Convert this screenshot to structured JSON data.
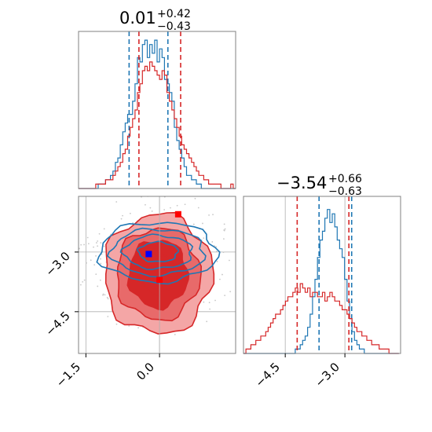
{
  "colors": {
    "blue": "#1f77b4",
    "red": "#d62728",
    "red_fill_light": "#f4a6a6",
    "red_fill_mid": "#e86a6a",
    "red_fill_dark": "#d62728",
    "blue_marker": "#0000ff",
    "red_marker": "#ff0000",
    "grid": "#b0b0b0"
  },
  "chart_data": [
    {
      "type": "histogram",
      "panel": "top-left",
      "title": {
        "median": "0.01",
        "plus": "+0.42",
        "minus": "−0.43"
      },
      "xlim": [
        -1.65,
        1.55
      ],
      "ylim": [
        0,
        36
      ],
      "bin_edges_start": -1.65,
      "bin_width": 0.05,
      "series": [
        {
          "name": "",
          "color": "#1f77b4",
          "counts": [
            0,
            0,
            0,
            0,
            0,
            0,
            0,
            0,
            1,
            1,
            1,
            2,
            2,
            3,
            4,
            6,
            7,
            10,
            13,
            15,
            17,
            17,
            20,
            24,
            30,
            29,
            33,
            34,
            30,
            33,
            31,
            34,
            29,
            32,
            30,
            25,
            24,
            22,
            20,
            14,
            11,
            9,
            7,
            5,
            3,
            3,
            2,
            2,
            1,
            1,
            0,
            0,
            0,
            0,
            0,
            0,
            0,
            0,
            0,
            0,
            0,
            0,
            0,
            0
          ],
          "quantile_lines": [
            -0.62,
            0.17
          ]
        },
        {
          "name": "",
          "color": "#d62728",
          "counts": [
            0,
            0,
            0,
            0,
            0,
            0,
            0,
            1,
            1,
            1,
            1,
            2,
            2,
            2,
            3,
            4,
            5,
            6,
            8,
            9,
            12,
            14,
            16,
            18,
            22,
            24,
            27,
            28,
            27,
            29,
            28,
            27,
            26,
            25,
            27,
            26,
            22,
            20,
            18,
            16,
            14,
            12,
            10,
            9,
            8,
            7,
            6,
            5,
            4,
            3,
            3,
            2,
            2,
            1,
            1,
            1,
            1,
            1,
            0,
            0,
            0,
            0,
            1,
            0
          ],
          "quantile_lines": [
            -0.42,
            0.43
          ]
        }
      ]
    },
    {
      "type": "contour",
      "panel": "bottom-left",
      "xlim": [
        -1.65,
        1.55
      ],
      "ylim": [
        -5.55,
        -1.6
      ],
      "xticks": [
        "−1.5",
        "0.0"
      ],
      "xtick_values": [
        -1.5,
        0.0
      ],
      "yticks": [
        "−3.0",
        "−4.5"
      ],
      "ytick_values": [
        -3.0,
        -4.5
      ],
      "grid": true,
      "truth_lines": {
        "x": 0.0,
        "y": [
          -3.0,
          -4.5
        ]
      },
      "markers": [
        {
          "color": "#0000ff",
          "x": -0.22,
          "y": -3.05
        },
        {
          "color": "#ff0000",
          "x": 0.38,
          "y": -2.05
        },
        {
          "color": "#ff0000",
          "x": 0.0,
          "y": -3.7
        }
      ],
      "series": [
        {
          "name": "",
          "color": "#d62728",
          "filled": true,
          "center": [
            -0.03,
            -3.55
          ],
          "radii": [
            [
              1.1,
              1.5
            ],
            [
              0.85,
              1.15
            ],
            [
              0.6,
              0.85
            ],
            [
              0.35,
              0.5
            ]
          ]
        },
        {
          "name": "",
          "color": "#1f77b4",
          "filled": false,
          "center": [
            -0.03,
            -3.0
          ],
          "radii": [
            [
              1.2,
              0.75
            ],
            [
              0.95,
              0.58
            ],
            [
              0.7,
              0.42
            ],
            [
              0.4,
              0.25
            ]
          ]
        }
      ]
    },
    {
      "type": "histogram",
      "panel": "bottom-right",
      "title": {
        "median": "−3.54",
        "plus": "+0.66",
        "minus": "−0.63"
      },
      "xlim": [
        -5.55,
        -1.6
      ],
      "ylim": [
        0,
        36
      ],
      "xticks": [
        "−4.5",
        "−3.0"
      ],
      "xtick_values": [
        -4.5,
        -3.0
      ],
      "bin_edges_start": -5.55,
      "bin_width": 0.062,
      "series": [
        {
          "name": "",
          "color": "#1f77b4",
          "counts": [
            0,
            0,
            0,
            0,
            0,
            0,
            0,
            0,
            0,
            0,
            0,
            0,
            0,
            0,
            0,
            0,
            0,
            0,
            0,
            0,
            0,
            1,
            1,
            2,
            3,
            4,
            6,
            9,
            13,
            17,
            22,
            26,
            28,
            31,
            33,
            30,
            32,
            29,
            26,
            24,
            22,
            17,
            12,
            8,
            5,
            3,
            2,
            1,
            1,
            0,
            0,
            0,
            0,
            0,
            0,
            0,
            0,
            0,
            0,
            0,
            0,
            0,
            0,
            0
          ],
          "quantile_lines": [
            -3.65,
            -2.83
          ]
        },
        {
          "name": "",
          "color": "#d62728",
          "counts": [
            0,
            1,
            1,
            2,
            2,
            3,
            3,
            4,
            4,
            5,
            6,
            7,
            8,
            9,
            9,
            10,
            11,
            12,
            13,
            13,
            14,
            15,
            14,
            16,
            15,
            14,
            15,
            13,
            14,
            14,
            13,
            13,
            14,
            12,
            13,
            14,
            13,
            12,
            12,
            11,
            10,
            10,
            9,
            8,
            7,
            6,
            5,
            5,
            4,
            4,
            3,
            3,
            2,
            2,
            2,
            1,
            1,
            1,
            1,
            0,
            0,
            0,
            0,
            0
          ],
          "quantile_lines": [
            -4.2,
            -2.9
          ]
        }
      ]
    }
  ]
}
